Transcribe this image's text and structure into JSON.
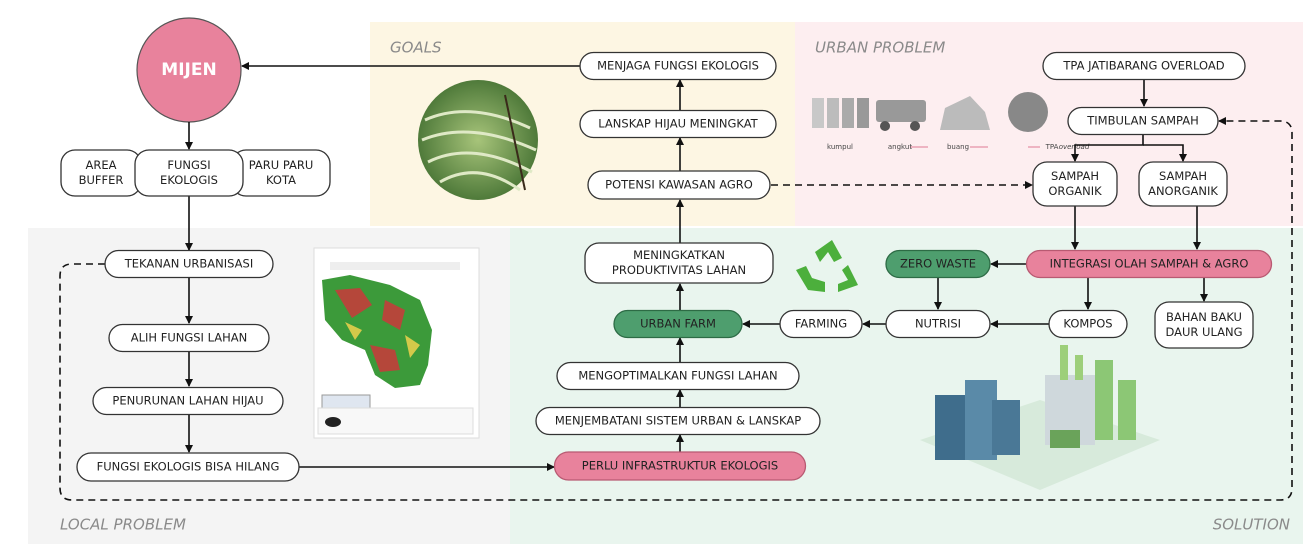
{
  "mijen": "MIJEN",
  "regions": {
    "goals": "GOALS",
    "urban_problem": "URBAN PROBLEM",
    "local_problem": "LOCAL PROBLEM",
    "solution": "SOLUTION"
  },
  "functions": [
    [
      "AREA",
      "BUFFER"
    ],
    [
      "FUNGSI",
      "EKOLOGIS"
    ],
    [
      "PARU PARU",
      "KOTA"
    ]
  ],
  "local_problem": [
    "TEKANAN URBANISASI",
    "ALIH FUNGSI LAHAN",
    "PENURUNAN LAHAN HIJAU",
    "FUNGSI EKOLOGIS BISA HILANG"
  ],
  "goals": [
    "MENJAGA FUNGSI EKOLOGIS",
    "LANSKAP HIJAU MENINGKAT",
    "POTENSI KAWASAN AGRO"
  ],
  "solution": {
    "main": [
      [
        "MENINGKATKAN",
        "PRODUKTIVITAS LAHAN"
      ],
      [
        "URBAN FARM"
      ],
      [
        "MENGOPTIMALKAN FUNGSI LAHAN"
      ],
      [
        "MENJEMBATANI SISTEM URBAN & LANSKAP"
      ],
      [
        "PERLU INFRASTRUKTUR EKOLOGIS"
      ]
    ],
    "waste": [
      [
        "ZERO WASTE"
      ],
      [
        "INTEGRASI OLAH SAMPAH & AGRO"
      ],
      [
        "FARMING"
      ],
      [
        "NUTRISI"
      ],
      [
        "KOMPOS"
      ],
      [
        "BAHAN BAKU",
        "DAUR ULANG"
      ]
    ]
  },
  "urban_problem": {
    "nodes": [
      [
        "TPA JATIBARANG OVERLOAD"
      ],
      [
        "TIMBULAN SAMPAH"
      ],
      [
        "SAMPAH",
        "ORGANIK"
      ],
      [
        "SAMPAH",
        "ANORGANIK"
      ]
    ],
    "process": [
      "kumpul",
      "angkut",
      "buang"
    ],
    "process_end": [
      "TPA",
      "overload"
    ]
  }
}
